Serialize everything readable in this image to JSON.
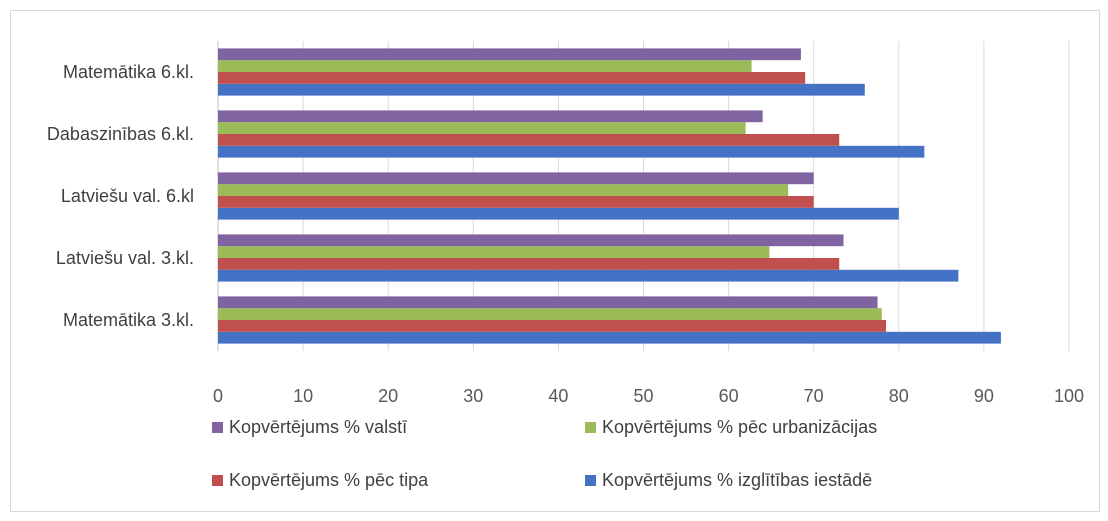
{
  "chart_data": {
    "type": "bar",
    "orientation": "horizontal",
    "categories": [
      "Matemātika 3.kl.",
      "Latviešu val. 3.kl.",
      "Latviešu val. 6.kl",
      "Dabaszinības 6.kl.",
      "Matemātika 6.kl."
    ],
    "series": [
      {
        "name": "Kopvērtējums % izglītības iestādē",
        "color": "#4472C4",
        "values": [
          92,
          87,
          80,
          83,
          76
        ]
      },
      {
        "name": "Kopvērtējums % pēc tipa",
        "color": "#C0504D",
        "values": [
          78.5,
          73,
          70,
          73,
          69
        ]
      },
      {
        "name": "Kopvērtējums % pēc urbanizācijas",
        "color": "#9BBB59",
        "values": [
          78,
          64.8,
          67,
          62,
          62.7
        ]
      },
      {
        "name": "Kopvērtējums % valstī",
        "color": "#8064A2",
        "values": [
          77.5,
          73.5,
          70,
          64,
          68.5
        ]
      }
    ],
    "xlim": [
      0,
      100
    ],
    "xticks": [
      0,
      10,
      20,
      30,
      40,
      50,
      60,
      70,
      80,
      90,
      100
    ],
    "title": "",
    "xlabel": "",
    "ylabel": "",
    "grid": "vertical",
    "legend_position": "bottom",
    "legend_order": [
      3,
      2,
      1,
      0
    ]
  }
}
